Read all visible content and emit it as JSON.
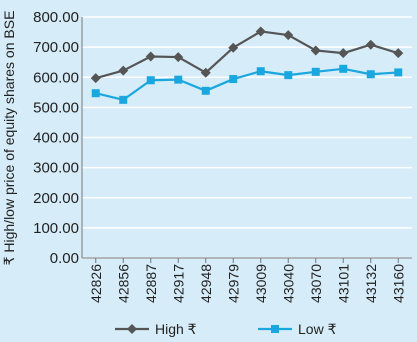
{
  "chart_data": {
    "type": "line",
    "categories": [
      "42826",
      "42856",
      "42887",
      "42917",
      "42948",
      "42979",
      "43009",
      "43040",
      "43070",
      "43101",
      "43132",
      "43160"
    ],
    "series": [
      {
        "name": "High ₹",
        "color": "#555555",
        "marker": "diamond",
        "values": [
          597,
          622,
          669,
          667,
          615,
          698,
          752,
          740,
          689,
          680,
          708,
          680
        ]
      },
      {
        "name": "Low ₹",
        "color": "#1aa7e0",
        "marker": "square",
        "values": [
          547,
          525,
          590,
          592,
          555,
          594,
          620,
          607,
          618,
          628,
          610,
          616
        ]
      }
    ],
    "ylabel": "₹ High/low price of equity shares on BSE",
    "xlabel": "",
    "title": "",
    "ylim": [
      0,
      800
    ],
    "yticks": [
      "0.00",
      "100.00",
      "200.00",
      "300.00",
      "400.00",
      "500.00",
      "600.00",
      "700.00",
      "800.00"
    ],
    "ytick_values": [
      0,
      100,
      200,
      300,
      400,
      500,
      600,
      700,
      800
    ],
    "grid": true,
    "legend_position": "bottom"
  }
}
